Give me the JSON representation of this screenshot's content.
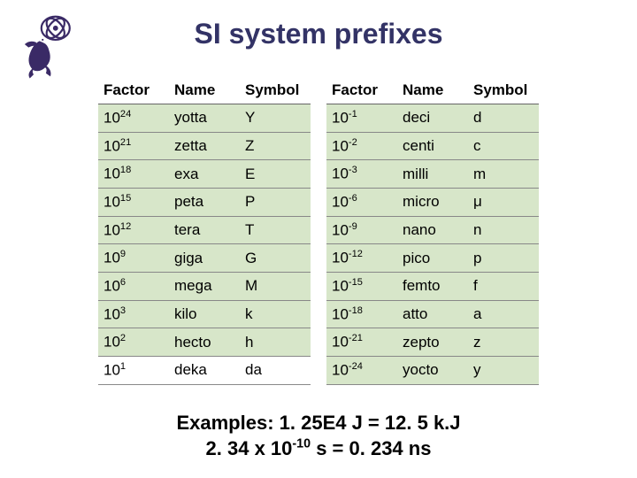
{
  "title": "SI system prefixes",
  "logo_color": "#3a2a66",
  "headers": {
    "factor": "Factor",
    "name": "Name",
    "symbol": "Symbol"
  },
  "table_left": {
    "columns": [
      "Factor",
      "Name",
      "Symbol"
    ],
    "rows": [
      {
        "exp": "24",
        "name": "yotta",
        "symbol": "Y",
        "shade": true
      },
      {
        "exp": "21",
        "name": "zetta",
        "symbol": "Z",
        "shade": true
      },
      {
        "exp": "18",
        "name": "exa",
        "symbol": "E",
        "shade": true
      },
      {
        "exp": "15",
        "name": "peta",
        "symbol": "P",
        "shade": true
      },
      {
        "exp": "12",
        "name": "tera",
        "symbol": "T",
        "shade": true
      },
      {
        "exp": "9",
        "name": "giga",
        "symbol": "G",
        "shade": true
      },
      {
        "exp": "6",
        "name": "mega",
        "symbol": "M",
        "shade": true
      },
      {
        "exp": "3",
        "name": "kilo",
        "symbol": "k",
        "shade": true
      },
      {
        "exp": "2",
        "name": "hecto",
        "symbol": "h",
        "shade": true
      },
      {
        "exp": "1",
        "name": "deka",
        "symbol": "da",
        "shade": false
      }
    ]
  },
  "table_right": {
    "columns": [
      "Factor",
      "Name",
      "Symbol"
    ],
    "rows": [
      {
        "exp": "-1",
        "name": "deci",
        "symbol": "d",
        "shade": true
      },
      {
        "exp": "-2",
        "name": "centi",
        "symbol": "c",
        "shade": true
      },
      {
        "exp": "-3",
        "name": "milli",
        "symbol": "m",
        "shade": true
      },
      {
        "exp": "-6",
        "name": "micro",
        "symbol": "μ",
        "shade": true
      },
      {
        "exp": "-9",
        "name": "nano",
        "symbol": "n",
        "shade": true
      },
      {
        "exp": "-12",
        "name": "pico",
        "symbol": "p",
        "shade": true
      },
      {
        "exp": "-15",
        "name": "femto",
        "symbol": "f",
        "shade": true
      },
      {
        "exp": "-18",
        "name": "atto",
        "symbol": "a",
        "shade": true
      },
      {
        "exp": "-21",
        "name": "zepto",
        "symbol": "z",
        "shade": true
      },
      {
        "exp": "-24",
        "name": "yocto",
        "symbol": "y",
        "shade": true
      }
    ]
  },
  "examples": {
    "line1_pre": "Examples: 1. 25E4 J = 12. 5 k.J",
    "line2_a": "2. 34 x 10",
    "line2_exp": "-10",
    "line2_b": " s = 0. 234 ns"
  },
  "style": {
    "row_bg_shade": "#d7e6c9",
    "row_bg_white": "#ffffff",
    "title_color": "#333366",
    "border_color": "#888888",
    "font_family": "Arial",
    "title_fontsize": 32,
    "body_fontsize": 17,
    "examples_fontsize": 22
  }
}
